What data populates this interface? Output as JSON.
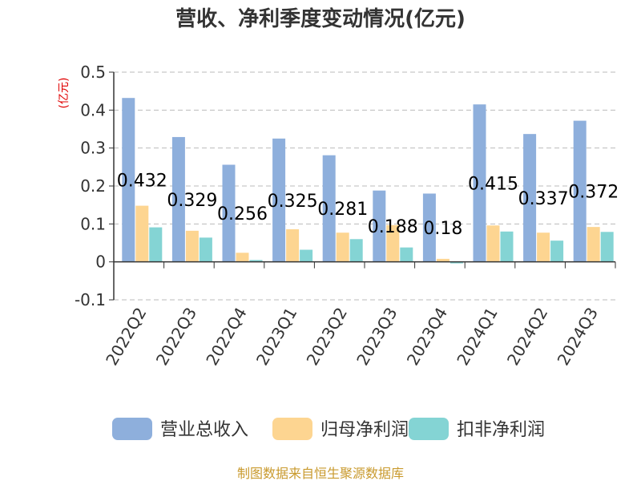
{
  "chart_data": {
    "type": "bar",
    "title": "营收、净利季度变动情况(亿元)",
    "y_unit": "(亿元)",
    "categories": [
      "2022Q2",
      "2022Q3",
      "2022Q4",
      "2023Q1",
      "2023Q2",
      "2023Q3",
      "2023Q4",
      "2024Q1",
      "2024Q2",
      "2024Q3"
    ],
    "series": [
      {
        "name": "营业总收入",
        "color": "#8eafdc",
        "values": [
          0.432,
          0.329,
          0.256,
          0.325,
          0.281,
          0.188,
          0.18,
          0.415,
          0.337,
          0.372
        ],
        "data_labels": [
          "0.432",
          "0.329",
          "0.256",
          "0.325",
          "0.281",
          "0.188",
          "0.18",
          "0.415",
          "0.337",
          "0.372"
        ]
      },
      {
        "name": "归母净利润",
        "color": "#fdd591",
        "values": [
          0.148,
          0.082,
          0.024,
          0.086,
          0.077,
          0.097,
          0.008,
          0.096,
          0.077,
          0.092
        ]
      },
      {
        "name": "扣非净利润",
        "color": "#84d4d4",
        "values": [
          0.091,
          0.064,
          0.005,
          0.032,
          0.06,
          0.038,
          -0.004,
          0.08,
          0.056,
          0.079
        ]
      }
    ],
    "ylim": [
      -0.1,
      0.5
    ],
    "yticks": [
      "-0.1",
      "0",
      "0.1",
      "0.2",
      "0.3",
      "0.4",
      "0.5"
    ],
    "grid": true,
    "legend_position": "bottom",
    "source": "制图数据来自恒生聚源数据库"
  }
}
